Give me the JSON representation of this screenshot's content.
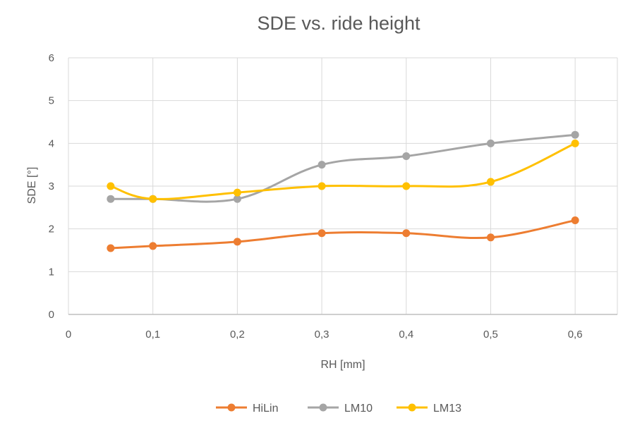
{
  "chart_data": {
    "type": "line",
    "title": "SDE vs. ride height",
    "xlabel": "RH [mm]",
    "ylabel": "SDE [°]",
    "xlim": [
      0,
      0.65
    ],
    "ylim": [
      0,
      6
    ],
    "x_ticks": [
      "0",
      "0,1",
      "0,2",
      "0,3",
      "0,4",
      "0,5",
      "0,6"
    ],
    "y_ticks": [
      "0",
      "1",
      "2",
      "3",
      "4",
      "5",
      "6"
    ],
    "x": [
      0.05,
      0.1,
      0.2,
      0.3,
      0.4,
      0.5,
      0.6
    ],
    "grid": true,
    "legend_position": "bottom",
    "series": [
      {
        "name": "HiLin",
        "color": "#ed7d31",
        "values": [
          1.55,
          1.6,
          1.7,
          1.9,
          1.9,
          1.8,
          2.2
        ]
      },
      {
        "name": "LM10",
        "color": "#a5a5a5",
        "values": [
          2.7,
          2.7,
          2.7,
          3.5,
          3.7,
          4.0,
          4.2
        ]
      },
      {
        "name": "LM13",
        "color": "#ffc000",
        "values": [
          3.0,
          2.7,
          2.85,
          3.0,
          3.0,
          3.1,
          4.0
        ]
      }
    ]
  }
}
